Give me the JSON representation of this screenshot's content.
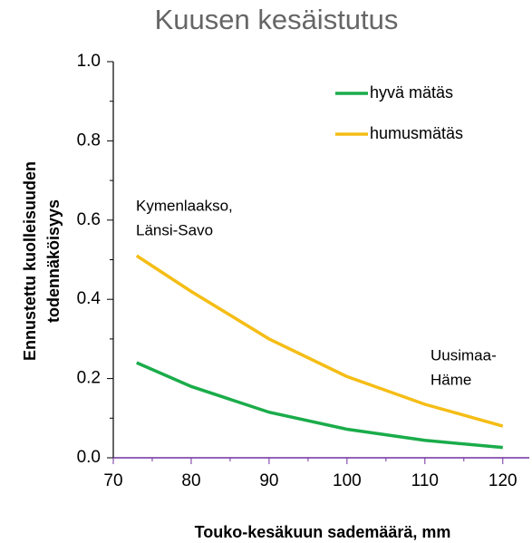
{
  "chart_data": {
    "type": "line",
    "title": "Kuusen kesäistutus",
    "xlabel": "Touko-kesäkuun sademäärä, mm",
    "ylabel": [
      "Ennustettu kuolleisuuden",
      "todennäköisyys"
    ],
    "x": [
      73,
      80,
      90,
      100,
      110,
      120
    ],
    "series": [
      {
        "name": "hyvä mätäs",
        "color": "#1aac4a",
        "values": [
          0.24,
          0.18,
          0.115,
          0.072,
          0.044,
          0.026
        ]
      },
      {
        "name": "humusmätäs",
        "color": "#f5bd16",
        "values": [
          0.51,
          0.42,
          0.3,
          0.205,
          0.135,
          0.08
        ]
      }
    ],
    "annotations": [
      [
        "Kymenlaakso,",
        "Länsi-Savo"
      ],
      [
        "Uusimaa-",
        "Häme"
      ]
    ],
    "xlim": [
      70,
      123.4
    ],
    "xticks": [
      70,
      80,
      90,
      100,
      110,
      120
    ],
    "ylim": [
      0,
      1
    ],
    "yticks": [
      {
        "value": 0,
        "label": "0.0"
      },
      0.2,
      0.4,
      0.6,
      0.8,
      {
        "value": 1,
        "label": "1.0"
      }
    ],
    "legend": "upper right",
    "x_axis_color": "#7030a0"
  }
}
